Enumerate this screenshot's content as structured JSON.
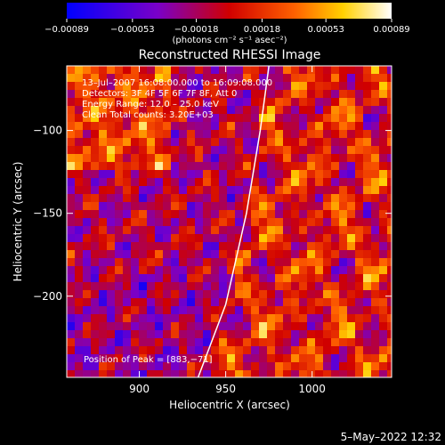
{
  "chart_data": {
    "type": "heatmap",
    "title": "Reconstructed RHESSI Image",
    "xlabel": "Heliocentric X (arcsec)",
    "ylabel": "Heliocentric Y (arcsec)",
    "xlim": [
      858,
      1046
    ],
    "ylim": [
      -249,
      -61
    ],
    "x_ticks": [
      900,
      950,
      1000
    ],
    "x_tick_labels": [
      "900",
      "950",
      "1000"
    ],
    "y_ticks": [
      -100,
      -150,
      -200
    ],
    "y_tick_labels": [
      "−100",
      "−150",
      "−200"
    ],
    "grid": false,
    "colorbar": {
      "position": "top",
      "range": [
        -0.00089,
        0.00089
      ],
      "ticks": [
        -0.00089,
        -0.00053,
        -0.00018,
        0.00018,
        0.00053,
        0.00089
      ],
      "tick_labels": [
        "−0.00089",
        "−0.00053",
        "−0.00018",
        "0.00018",
        "0.00053",
        "0.00089"
      ],
      "units_label": "(photons cm⁻² s⁻¹ asec⁻²)",
      "colors": [
        "#0000ff",
        "#7a00c8",
        "#d00000",
        "#ff6000",
        "#ffd000",
        "#ffffff"
      ]
    },
    "annotations": [
      "13–Jul–2007 16:08:00.000 to 16:09:08.000",
      "Detectors: 3F 4F 5F 6F 7F 8F, Att 0",
      "Energy Range: 12.0 – 25.0 keV",
      "Clean    Total counts: 3.20E+03",
      "Position of Peak = [883,−71]"
    ],
    "limb_curve": [
      [
        934,
        -249
      ],
      [
        950,
        -205
      ],
      [
        962,
        -150
      ],
      [
        970,
        -100
      ],
      [
        975,
        -61
      ]
    ]
  },
  "footer": {
    "timestamp": "5–May–2022 12:32"
  }
}
